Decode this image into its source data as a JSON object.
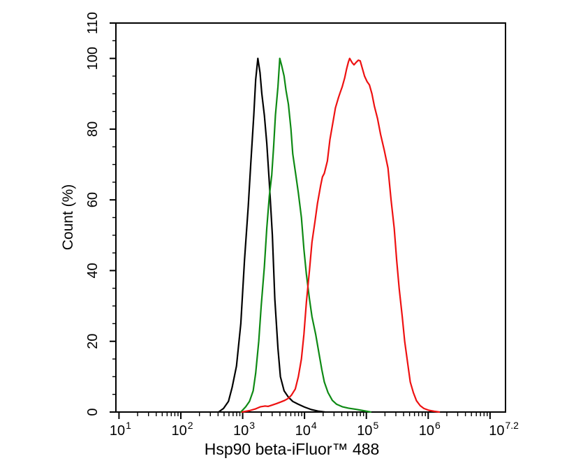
{
  "chart_data": {
    "type": "line",
    "title": "",
    "xlabel": "Hsp90 beta-iFluor™ 488",
    "ylabel": "Count (%)",
    "grid": false,
    "legend": "none",
    "background": "#ffffff",
    "axis_color": "#000000",
    "x_axis": {
      "scale": "log10",
      "range_log": [
        0.95,
        7.25
      ],
      "major_tick_exponents": [
        1,
        2,
        3,
        4,
        5,
        6,
        7
      ],
      "labeled_ticks": [
        {
          "log": 1,
          "base": "10",
          "exp": "1"
        },
        {
          "log": 2,
          "base": "10",
          "exp": "2"
        },
        {
          "log": 3,
          "base": "10",
          "exp": "3"
        },
        {
          "log": 4,
          "base": "10",
          "exp": "4"
        },
        {
          "log": 5,
          "base": "10",
          "exp": "5"
        },
        {
          "log": 6,
          "base": "10",
          "exp": "6"
        },
        {
          "log": 7.2,
          "base": "10",
          "exp": "7.2"
        }
      ],
      "minor_tick_mantissas": [
        2,
        3,
        4,
        5,
        6,
        7,
        8,
        9
      ]
    },
    "y_axis": {
      "range": [
        0,
        110
      ],
      "major_ticks": [
        0,
        20,
        40,
        60,
        80,
        100,
        110
      ],
      "minor_tick_step": 5
    },
    "series": [
      {
        "name": "black",
        "color": "#000000",
        "peak_log_x": 3.245,
        "peak_percent": 100,
        "points_logx_percent": [
          [
            2.61,
            0
          ],
          [
            2.69,
            1
          ],
          [
            2.77,
            3
          ],
          [
            2.83,
            7
          ],
          [
            2.9,
            13
          ],
          [
            2.97,
            25
          ],
          [
            3.03,
            43
          ],
          [
            3.09,
            58
          ],
          [
            3.13,
            70
          ],
          [
            3.18,
            84
          ],
          [
            3.21,
            94
          ],
          [
            3.245,
            100
          ],
          [
            3.28,
            96
          ],
          [
            3.31,
            90
          ],
          [
            3.35,
            84
          ],
          [
            3.39,
            76
          ],
          [
            3.43,
            65
          ],
          [
            3.48,
            50
          ],
          [
            3.52,
            32
          ],
          [
            3.57,
            18
          ],
          [
            3.61,
            10
          ],
          [
            3.67,
            6
          ],
          [
            3.74,
            4.2
          ],
          [
            3.81,
            3
          ],
          [
            3.9,
            2.2
          ],
          [
            4.0,
            1.4
          ],
          [
            4.11,
            0.7
          ],
          [
            4.22,
            0.25
          ],
          [
            4.33,
            0
          ]
        ]
      },
      {
        "name": "green",
        "color": "#0e8a14",
        "peak_log_x": 3.6,
        "peak_percent": 100,
        "points_logx_percent": [
          [
            2.97,
            0
          ],
          [
            3.05,
            1.5
          ],
          [
            3.11,
            3
          ],
          [
            3.17,
            6
          ],
          [
            3.21,
            11
          ],
          [
            3.26,
            20
          ],
          [
            3.3,
            30
          ],
          [
            3.35,
            41
          ],
          [
            3.39,
            52
          ],
          [
            3.43,
            61
          ],
          [
            3.47,
            67
          ],
          [
            3.5,
            75
          ],
          [
            3.53,
            84
          ],
          [
            3.57,
            92
          ],
          [
            3.6,
            100
          ],
          [
            3.63,
            98
          ],
          [
            3.67,
            95
          ],
          [
            3.7,
            91
          ],
          [
            3.74,
            87
          ],
          [
            3.78,
            80
          ],
          [
            3.81,
            73
          ],
          [
            3.86,
            67
          ],
          [
            3.9,
            62
          ],
          [
            3.95,
            55
          ],
          [
            3.99,
            46
          ],
          [
            4.03,
            39
          ],
          [
            4.08,
            32
          ],
          [
            4.12,
            27
          ],
          [
            4.18,
            22
          ],
          [
            4.23,
            17
          ],
          [
            4.28,
            12
          ],
          [
            4.32,
            8.5
          ],
          [
            4.38,
            5.5
          ],
          [
            4.45,
            3.3
          ],
          [
            4.52,
            2.2
          ],
          [
            4.61,
            1.5
          ],
          [
            4.71,
            1.1
          ],
          [
            4.82,
            0.8
          ],
          [
            4.95,
            0.4
          ],
          [
            5.07,
            0
          ]
        ]
      },
      {
        "name": "red",
        "color": "#ee1111",
        "peak_log_x": 4.73,
        "peak_percent": 100,
        "points_logx_percent": [
          [
            2.99,
            0
          ],
          [
            3.11,
            0.4
          ],
          [
            3.21,
            0.9
          ],
          [
            3.29,
            1.5
          ],
          [
            3.36,
            1.7
          ],
          [
            3.41,
            1.6
          ],
          [
            3.48,
            2.0
          ],
          [
            3.55,
            2.4
          ],
          [
            3.61,
            2.8
          ],
          [
            3.68,
            3.3
          ],
          [
            3.74,
            3.9
          ],
          [
            3.79,
            4.8
          ],
          [
            3.85,
            6.5
          ],
          [
            3.9,
            10
          ],
          [
            3.95,
            15
          ],
          [
            3.99,
            22
          ],
          [
            4.03,
            31
          ],
          [
            4.08,
            40
          ],
          [
            4.12,
            48
          ],
          [
            4.17,
            54
          ],
          [
            4.21,
            59
          ],
          [
            4.26,
            64
          ],
          [
            4.29,
            66.5
          ],
          [
            4.32,
            67.5
          ],
          [
            4.37,
            71
          ],
          [
            4.41,
            77
          ],
          [
            4.46,
            82
          ],
          [
            4.5,
            86
          ],
          [
            4.55,
            89
          ],
          [
            4.58,
            90.5
          ],
          [
            4.61,
            92
          ],
          [
            4.65,
            94.5
          ],
          [
            4.68,
            97
          ],
          [
            4.71,
            99
          ],
          [
            4.73,
            100
          ],
          [
            4.77,
            98.8
          ],
          [
            4.8,
            98.2
          ],
          [
            4.83,
            98.8
          ],
          [
            4.87,
            99.5
          ],
          [
            4.9,
            99.3
          ],
          [
            4.93,
            97.5
          ],
          [
            4.97,
            95
          ],
          [
            5.01,
            93.5
          ],
          [
            5.05,
            92.5
          ],
          [
            5.09,
            90
          ],
          [
            5.13,
            86.5
          ],
          [
            5.18,
            83
          ],
          [
            5.23,
            78.5
          ],
          [
            5.29,
            74
          ],
          [
            5.35,
            69
          ],
          [
            5.4,
            60
          ],
          [
            5.45,
            52
          ],
          [
            5.49,
            43
          ],
          [
            5.53,
            35
          ],
          [
            5.58,
            27
          ],
          [
            5.62,
            20
          ],
          [
            5.67,
            13.5
          ],
          [
            5.71,
            8.5
          ],
          [
            5.76,
            5.5
          ],
          [
            5.81,
            3.2
          ],
          [
            5.87,
            1.8
          ],
          [
            5.93,
            1.0
          ],
          [
            6.01,
            0.5
          ],
          [
            6.1,
            0.2
          ],
          [
            6.18,
            0
          ]
        ]
      }
    ]
  }
}
